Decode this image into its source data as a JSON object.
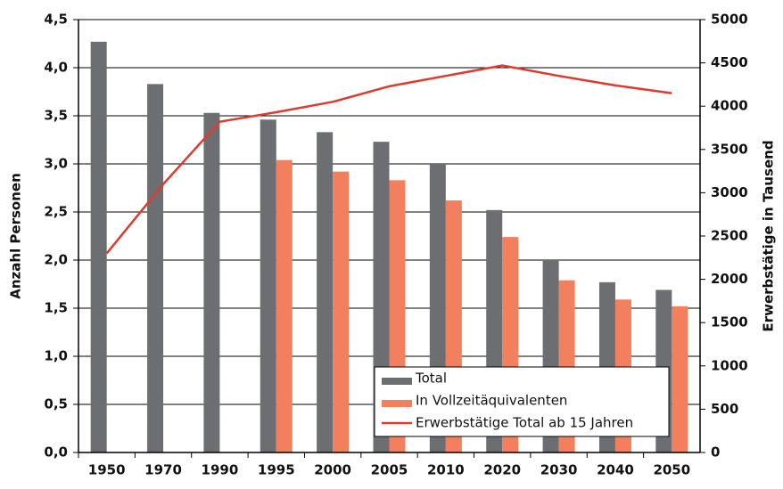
{
  "chart_data": {
    "type": "bar_line",
    "categories": [
      "1950",
      "1970",
      "1990",
      "1995",
      "2000",
      "2005",
      "2010",
      "2020",
      "2030",
      "2040",
      "2050"
    ],
    "y_label": "Anzahl Personen",
    "y2_label": "Erwerbstätige in Tausend",
    "series": [
      {
        "name": "Total",
        "type": "bar",
        "color": "#6d6e71",
        "values": [
          4.27,
          3.83,
          3.53,
          3.46,
          3.33,
          3.23,
          3.0,
          2.52,
          2.0,
          1.77,
          1.69
        ]
      },
      {
        "name": "In Vollzeitäquivalenten",
        "type": "bar",
        "color": "#f2805f",
        "values": [
          null,
          null,
          null,
          3.04,
          2.92,
          2.83,
          2.62,
          2.24,
          1.79,
          1.59,
          1.52
        ]
      },
      {
        "name": "Erwerbstätige Total ab 15 Jahren",
        "type": "line",
        "axis": "y2",
        "color": "#e03a2e",
        "values": [
          2300,
          3100,
          3820,
          3930,
          4050,
          4230,
          4350,
          4470,
          4350,
          4240,
          4150
        ]
      }
    ],
    "ylim": [
      0,
      4.5
    ],
    "yticks": [
      {
        "value": 0,
        "label": "0,0"
      },
      {
        "value": 0.5,
        "label": "0,5"
      },
      {
        "value": 1,
        "label": "1,0"
      },
      {
        "value": 1.5,
        "label": "1,5"
      },
      {
        "value": 2,
        "label": "2,0"
      },
      {
        "value": 2.5,
        "label": "2,5"
      },
      {
        "value": 3,
        "label": "3,0"
      },
      {
        "value": 3.5,
        "label": "3,5"
      },
      {
        "value": 4,
        "label": "4,0"
      },
      {
        "value": 4.5,
        "label": "4,5"
      }
    ],
    "y2lim": [
      0,
      5000
    ],
    "y2ticks": [
      0,
      500,
      1000,
      1500,
      2000,
      2500,
      3000,
      3500,
      4000,
      4500,
      5000
    ],
    "grid": true,
    "legend": "lower right"
  }
}
